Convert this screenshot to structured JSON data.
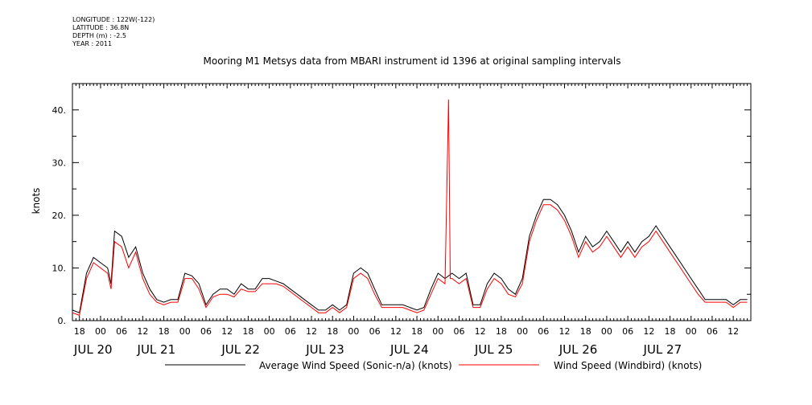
{
  "meta": {
    "longitude": "LONGITUDE : 122W(-122)",
    "latitude": "LATITUDE : 36.8N",
    "depth": "DEPTH (m) : -2.5",
    "year": "YEAR : 2011"
  },
  "chart_data": {
    "type": "line",
    "title": "Mooring M1 Metsys data from MBARI instrument id 1396 at original sampling intervals",
    "ylabel": "knots",
    "xlabel": "",
    "ylim": [
      0,
      45
    ],
    "yticks": [
      {
        "v": 0,
        "label": "0."
      },
      {
        "v": 10,
        "label": "10."
      },
      {
        "v": 20,
        "label": "20."
      },
      {
        "v": 30,
        "label": "30."
      },
      {
        "v": 40,
        "label": "40."
      }
    ],
    "xlim_hours": [
      -8,
      116
    ],
    "hour_ticks": [
      {
        "h": -6,
        "label": "18"
      },
      {
        "h": 0,
        "label": "00"
      },
      {
        "h": 6,
        "label": "06"
      },
      {
        "h": 12,
        "label": "12"
      },
      {
        "h": 18,
        "label": "18"
      },
      {
        "h": 24,
        "label": "00"
      },
      {
        "h": 30,
        "label": "06"
      },
      {
        "h": 36,
        "label": "12"
      },
      {
        "h": 42,
        "label": "18"
      },
      {
        "h": 48,
        "label": "00"
      },
      {
        "h": 54,
        "label": "06"
      },
      {
        "h": 60,
        "label": "12"
      },
      {
        "h": 66,
        "label": "18"
      },
      {
        "h": 72,
        "label": "00"
      },
      {
        "h": 78,
        "label": "06"
      },
      {
        "h": 84,
        "label": "12"
      },
      {
        "h": 90,
        "label": "18"
      },
      {
        "h": 96,
        "label": "00"
      },
      {
        "h": 102,
        "label": "06"
      },
      {
        "h": 108,
        "label": "12"
      },
      {
        "h": 114,
        "label": "18"
      },
      {
        "h": 120,
        "label": "00"
      },
      {
        "h": 126,
        "label": "06"
      },
      {
        "h": 132,
        "label": "12"
      },
      {
        "h": 138,
        "label": "18"
      },
      {
        "h": 144,
        "label": "00"
      },
      {
        "h": 150,
        "label": "06"
      },
      {
        "h": 156,
        "label": "12"
      },
      {
        "h": 162,
        "label": "18"
      },
      {
        "h": 168,
        "label": "00"
      },
      {
        "h": 174,
        "label": "06"
      },
      {
        "h": 180,
        "label": "12"
      }
    ],
    "day_labels": [
      {
        "h": -6,
        "label": "JUL 20"
      },
      {
        "h": 12,
        "label": "JUL 21"
      },
      {
        "h": 36,
        "label": "JUL 22"
      },
      {
        "h": 60,
        "label": "JUL 23"
      },
      {
        "h": 84,
        "label": "JUL 24"
      },
      {
        "h": 108,
        "label": "JUL 25"
      },
      {
        "h": 132,
        "label": "JUL 26"
      },
      {
        "h": 156,
        "label": "JUL 27"
      }
    ],
    "x_hours_range": [
      -8,
      185
    ],
    "series": [
      {
        "name": "Average Wind Speed (Sonic-n/a) (knots)",
        "color": "#000000",
        "x": [
          -8,
          -6,
          -4,
          -2,
          0,
          2,
          3,
          4,
          6,
          8,
          10,
          12,
          14,
          16,
          18,
          20,
          22,
          24,
          26,
          28,
          30,
          32,
          34,
          36,
          38,
          40,
          42,
          44,
          46,
          48,
          50,
          52,
          54,
          56,
          58,
          60,
          62,
          64,
          66,
          68,
          70,
          72,
          74,
          76,
          78,
          80,
          82,
          84,
          86,
          88,
          90,
          92,
          94,
          96,
          98,
          100,
          102,
          104,
          106,
          108,
          110,
          112,
          114,
          116,
          118,
          120,
          122,
          124,
          126,
          128,
          130,
          132,
          134,
          136,
          138,
          140,
          142,
          144,
          146,
          148,
          150,
          152,
          154,
          156,
          158,
          160,
          162,
          164,
          166,
          168,
          170,
          172,
          174,
          176,
          178,
          180,
          182,
          184
        ],
        "y": [
          2,
          1.5,
          9,
          12,
          11,
          10,
          7,
          17,
          16,
          12,
          14,
          9,
          6,
          4,
          3.5,
          4,
          4,
          9,
          8.5,
          7,
          3,
          5,
          6,
          6,
          5,
          7,
          6,
          6,
          8,
          8,
          7.5,
          7,
          6,
          5,
          4,
          3,
          2,
          2,
          3,
          2,
          3,
          9,
          10,
          9,
          6,
          3,
          3,
          3,
          3,
          2.5,
          2,
          2.5,
          6,
          9,
          8,
          9,
          8,
          9,
          3,
          3,
          7,
          9,
          8,
          6,
          5,
          8,
          16,
          20,
          23,
          23,
          22,
          20,
          17,
          13,
          16,
          14,
          15,
          17,
          15,
          13,
          15,
          13,
          15,
          16,
          18,
          16,
          14,
          12,
          10,
          8,
          6,
          4,
          4,
          4,
          4,
          3,
          4,
          4
        ]
      },
      {
        "name": "Wind Speed (Windbird) (knots)",
        "color": "#ff0000",
        "x": [
          -8,
          -6,
          -4,
          -2,
          0,
          2,
          3,
          4,
          6,
          8,
          10,
          12,
          14,
          16,
          18,
          20,
          22,
          24,
          26,
          28,
          30,
          32,
          34,
          36,
          38,
          40,
          42,
          44,
          46,
          48,
          50,
          52,
          54,
          56,
          58,
          60,
          62,
          64,
          66,
          68,
          70,
          72,
          74,
          76,
          78,
          80,
          82,
          84,
          86,
          88,
          90,
          92,
          94,
          96,
          98,
          99,
          99.5,
          100,
          102,
          104,
          106,
          108,
          110,
          112,
          114,
          116,
          118,
          120,
          122,
          124,
          126,
          128,
          130,
          132,
          134,
          136,
          138,
          140,
          142,
          144,
          146,
          148,
          150,
          152,
          154,
          156,
          158,
          160,
          162,
          164,
          166,
          168,
          170,
          172,
          174,
          176,
          178,
          180,
          182,
          184
        ],
        "y": [
          1.5,
          1,
          8,
          11,
          10,
          9,
          6,
          15,
          14,
          10,
          13,
          8,
          5,
          3.5,
          3,
          3.5,
          3.5,
          8,
          8,
          6,
          2.5,
          4.5,
          5,
          5,
          4.5,
          6,
          5.5,
          5.5,
          7,
          7,
          7,
          6.5,
          5.5,
          4.5,
          3.5,
          2.5,
          1.5,
          1.5,
          2.5,
          1.5,
          2.5,
          8,
          9,
          8,
          5,
          2.5,
          2.5,
          2.5,
          2.5,
          2,
          1.5,
          2,
          5,
          8,
          7,
          42,
          8,
          8,
          7,
          8,
          2.5,
          2.5,
          6,
          8,
          7,
          5,
          4.5,
          7,
          15,
          19,
          22,
          22,
          21,
          19,
          16,
          12,
          15,
          13,
          14,
          16,
          14,
          12,
          14,
          12,
          14,
          15,
          17,
          15,
          13,
          11,
          9,
          7,
          5,
          3.5,
          3.5,
          3.5,
          3.5,
          2.5,
          3.5,
          3.5
        ]
      }
    ],
    "legend": "bottom"
  },
  "legend": {
    "black_label": "Average Wind Speed (Sonic-n/a) (knots)",
    "red_label": "Wind Speed (Windbird) (knots)"
  }
}
